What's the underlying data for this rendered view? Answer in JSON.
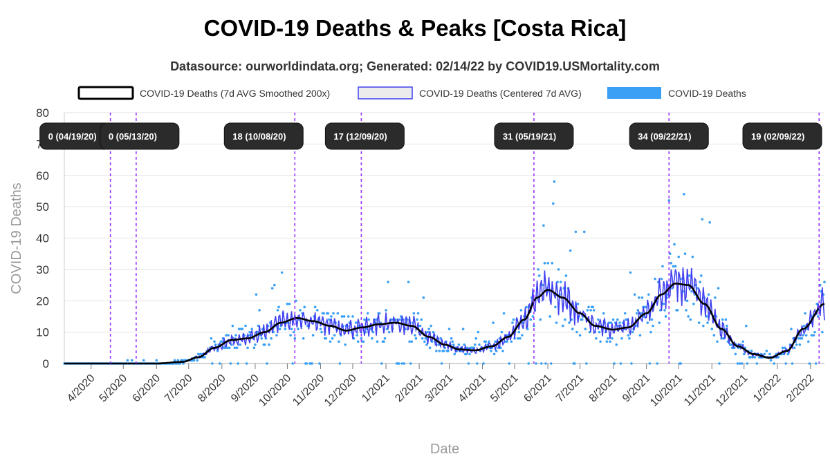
{
  "title": "COVID-19 Deaths & Peaks [Costa Rica]",
  "subtitle": "Datasource: ourworldindata.org; Generated: 02/14/22 by COVID19.USMortality.com",
  "colors": {
    "smoothed": "#000000",
    "centered": "#4040f0",
    "points": "#3aa0f5",
    "peak_line": "#9933ff",
    "label_bg": "#2b2b2b",
    "grid": "#e2e2e2"
  },
  "chart_data": {
    "type": "line",
    "xlabel": "Date",
    "ylabel": "COVID-19 Deaths",
    "ylim": [
      0,
      80
    ],
    "yticks": [
      0,
      10,
      20,
      30,
      40,
      50,
      60,
      70,
      80
    ],
    "xlim": [
      "2020-03-07",
      "2022-02-14"
    ],
    "xticks": [
      {
        "date": "2020-04-01",
        "label": "4/2020"
      },
      {
        "date": "2020-05-01",
        "label": "5/2020"
      },
      {
        "date": "2020-06-01",
        "label": "6/2020"
      },
      {
        "date": "2020-07-01",
        "label": "7/2020"
      },
      {
        "date": "2020-08-01",
        "label": "8/2020"
      },
      {
        "date": "2020-09-01",
        "label": "9/2020"
      },
      {
        "date": "2020-10-01",
        "label": "10/2020"
      },
      {
        "date": "2020-11-01",
        "label": "11/2020"
      },
      {
        "date": "2020-12-01",
        "label": "12/2020"
      },
      {
        "date": "2021-01-01",
        "label": "1/2021"
      },
      {
        "date": "2021-02-01",
        "label": "2/2021"
      },
      {
        "date": "2021-03-01",
        "label": "3/2021"
      },
      {
        "date": "2021-04-01",
        "label": "4/2021"
      },
      {
        "date": "2021-05-01",
        "label": "5/2021"
      },
      {
        "date": "2021-06-01",
        "label": "6/2021"
      },
      {
        "date": "2021-07-01",
        "label": "7/2021"
      },
      {
        "date": "2021-08-01",
        "label": "8/2021"
      },
      {
        "date": "2021-09-01",
        "label": "9/2021"
      },
      {
        "date": "2021-10-01",
        "label": "10/2021"
      },
      {
        "date": "2021-11-01",
        "label": "11/2021"
      },
      {
        "date": "2021-12-01",
        "label": "12/2021"
      },
      {
        "date": "2022-01-01",
        "label": "1/2022"
      },
      {
        "date": "2022-02-01",
        "label": "2/2022"
      }
    ],
    "legend": [
      {
        "name": "COVID-19 Deaths (7d AVG Smoothed 200x)",
        "style": "smoothed"
      },
      {
        "name": "COVID-19 Deaths (Centered 7d AVG)",
        "style": "centered"
      },
      {
        "name": "COVID-19 Deaths",
        "style": "points"
      }
    ],
    "smoothed_anchors": [
      [
        "2020-03-07",
        0
      ],
      [
        "2020-06-01",
        0
      ],
      [
        "2020-06-25",
        0.5
      ],
      [
        "2020-07-10",
        2
      ],
      [
        "2020-07-25",
        5
      ],
      [
        "2020-08-10",
        7.5
      ],
      [
        "2020-08-25",
        8
      ],
      [
        "2020-09-10",
        10
      ],
      [
        "2020-09-25",
        13
      ],
      [
        "2020-10-10",
        14.5
      ],
      [
        "2020-10-25",
        13.5
      ],
      [
        "2020-11-10",
        12
      ],
      [
        "2020-11-25",
        10.5
      ],
      [
        "2020-12-10",
        11.5
      ],
      [
        "2020-12-25",
        12.5
      ],
      [
        "2021-01-10",
        13
      ],
      [
        "2021-01-25",
        12
      ],
      [
        "2021-02-10",
        8.5
      ],
      [
        "2021-02-25",
        6
      ],
      [
        "2021-03-10",
        4.5
      ],
      [
        "2021-03-25",
        4.2
      ],
      [
        "2021-04-10",
        5.5
      ],
      [
        "2021-04-25",
        8.5
      ],
      [
        "2021-05-10",
        14
      ],
      [
        "2021-05-22",
        21
      ],
      [
        "2021-06-01",
        23.5
      ],
      [
        "2021-06-15",
        21
      ],
      [
        "2021-07-01",
        16
      ],
      [
        "2021-07-15",
        12
      ],
      [
        "2021-08-01",
        10.8
      ],
      [
        "2021-08-15",
        11.5
      ],
      [
        "2021-09-01",
        16
      ],
      [
        "2021-09-15",
        22
      ],
      [
        "2021-09-28",
        25.5
      ],
      [
        "2021-10-10",
        25
      ],
      [
        "2021-10-25",
        19
      ],
      [
        "2021-11-10",
        11
      ],
      [
        "2021-11-25",
        5.5
      ],
      [
        "2021-12-10",
        3
      ],
      [
        "2021-12-25",
        1.8
      ],
      [
        "2022-01-10",
        4
      ],
      [
        "2022-01-25",
        11
      ],
      [
        "2022-02-14",
        19
      ]
    ],
    "peaks": [
      {
        "date": "2020-04-19",
        "label": "0 (04/19/20)",
        "label_pos": "left"
      },
      {
        "date": "2020-05-13",
        "label": "0 (05/13/20)",
        "label_pos": "right"
      },
      {
        "date": "2020-10-08",
        "label": "18 (10/08/20)",
        "label_pos": "left"
      },
      {
        "date": "2020-12-09",
        "label": "17 (12/09/20)",
        "label_pos": "right"
      },
      {
        "date": "2021-05-19",
        "label": "31 (05/19/21)",
        "label_pos": "center"
      },
      {
        "date": "2021-09-22",
        "label": "34 (09/22/21)",
        "label_pos": "center"
      },
      {
        "date": "2022-02-09",
        "label": "19 (02/09/22)",
        "label_pos": "left"
      }
    ]
  }
}
